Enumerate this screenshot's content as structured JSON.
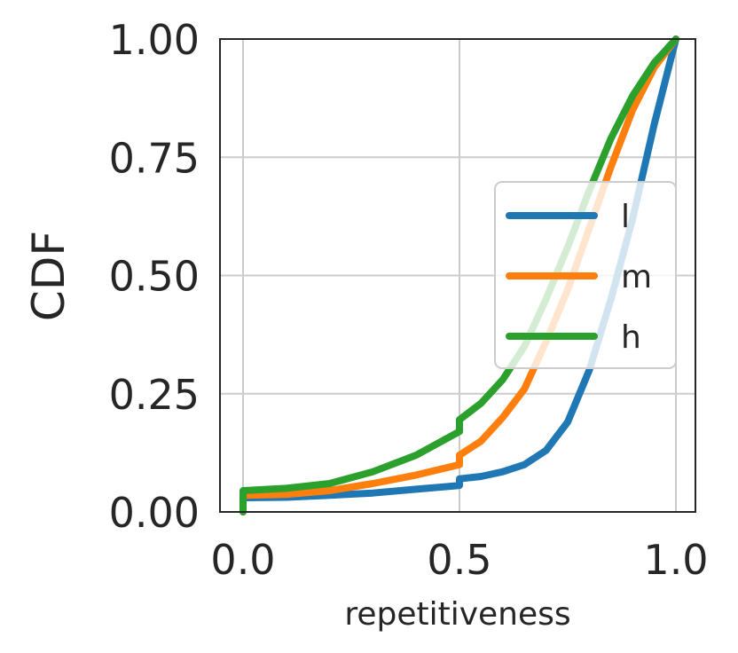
{
  "chart_data": {
    "type": "line",
    "title": "",
    "xlabel": "repetitiveness",
    "ylabel": "CDF",
    "xlim": [
      0.0,
      1.0
    ],
    "ylim": [
      0.0,
      1.0
    ],
    "xticks": [
      "0.0",
      "0.5",
      "1.0"
    ],
    "yticks": [
      "0.00",
      "0.25",
      "0.50",
      "0.75",
      "1.00"
    ],
    "grid": true,
    "legend_position": "center-right",
    "series": [
      {
        "name": "l",
        "color": "#1f77b4",
        "points": [
          [
            0.0,
            0.0
          ],
          [
            0.0,
            0.03
          ],
          [
            0.1,
            0.031
          ],
          [
            0.2,
            0.035
          ],
          [
            0.3,
            0.04
          ],
          [
            0.4,
            0.048
          ],
          [
            0.5,
            0.056
          ],
          [
            0.5,
            0.07
          ],
          [
            0.55,
            0.075
          ],
          [
            0.6,
            0.085
          ],
          [
            0.65,
            0.1
          ],
          [
            0.7,
            0.13
          ],
          [
            0.75,
            0.19
          ],
          [
            0.8,
            0.3
          ],
          [
            0.85,
            0.45
          ],
          [
            0.9,
            0.62
          ],
          [
            0.95,
            0.82
          ],
          [
            1.0,
            1.0
          ]
        ]
      },
      {
        "name": "m",
        "color": "#ff7f0e",
        "points": [
          [
            0.0,
            0.0
          ],
          [
            0.0,
            0.035
          ],
          [
            0.1,
            0.037
          ],
          [
            0.2,
            0.045
          ],
          [
            0.3,
            0.06
          ],
          [
            0.4,
            0.078
          ],
          [
            0.5,
            0.1
          ],
          [
            0.5,
            0.12
          ],
          [
            0.55,
            0.15
          ],
          [
            0.6,
            0.2
          ],
          [
            0.65,
            0.26
          ],
          [
            0.7,
            0.36
          ],
          [
            0.75,
            0.47
          ],
          [
            0.8,
            0.6
          ],
          [
            0.85,
            0.73
          ],
          [
            0.9,
            0.85
          ],
          [
            0.95,
            0.94
          ],
          [
            1.0,
            1.0
          ]
        ]
      },
      {
        "name": "h",
        "color": "#2ca02c",
        "points": [
          [
            0.0,
            0.0
          ],
          [
            0.0,
            0.045
          ],
          [
            0.1,
            0.05
          ],
          [
            0.2,
            0.06
          ],
          [
            0.3,
            0.085
          ],
          [
            0.4,
            0.12
          ],
          [
            0.5,
            0.17
          ],
          [
            0.5,
            0.195
          ],
          [
            0.55,
            0.23
          ],
          [
            0.6,
            0.28
          ],
          [
            0.65,
            0.35
          ],
          [
            0.7,
            0.45
          ],
          [
            0.75,
            0.56
          ],
          [
            0.8,
            0.68
          ],
          [
            0.85,
            0.79
          ],
          [
            0.9,
            0.88
          ],
          [
            0.95,
            0.95
          ],
          [
            1.0,
            1.0
          ]
        ]
      }
    ]
  }
}
